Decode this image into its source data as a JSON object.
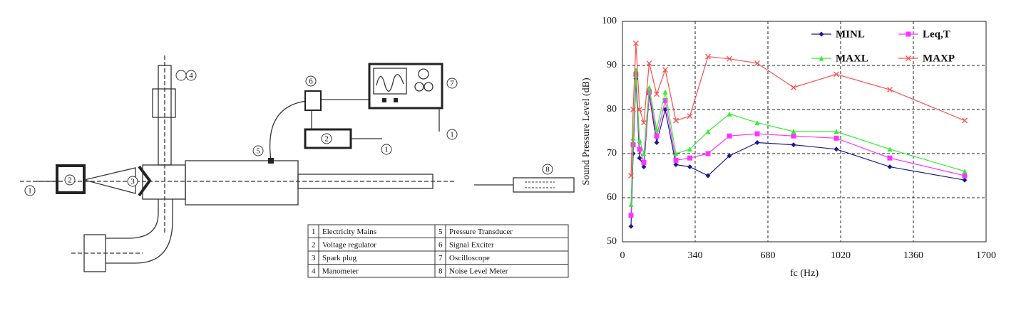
{
  "diagram": {
    "labels": [
      "1",
      "2",
      "3",
      "4",
      "5",
      "6",
      "7",
      "2",
      "1",
      "1",
      "8"
    ],
    "table": {
      "rows": [
        [
          "1",
          "Electricity Mains",
          "5",
          "Pressure Transducer"
        ],
        [
          "2",
          "Voltage regulator",
          "6",
          "Signal Exciter"
        ],
        [
          "3",
          "Spark plug",
          "7",
          "Oscilloscope"
        ],
        [
          "4",
          "Manometer",
          "8",
          "Noise Level Meter"
        ]
      ]
    }
  },
  "chart_data": {
    "type": "line",
    "x_label": "fc (Hz)",
    "y_label": "Sound Pressure Level (dB)",
    "x": [
      40,
      50,
      63,
      80,
      100,
      125,
      160,
      200,
      250,
      315,
      400,
      500,
      630,
      800,
      1000,
      1250,
      1600
    ],
    "series": [
      {
        "name": "MINL",
        "color": "#1a1a8c",
        "marker": "diamond",
        "values": [
          53.5,
          70,
          87,
          69,
          67,
          83.5,
          72.5,
          80,
          67.5,
          67,
          65,
          69.5,
          72.5,
          72,
          71,
          67,
          64
        ]
      },
      {
        "name": "Leq,T",
        "color": "#ff33ff",
        "marker": "square",
        "values": [
          56,
          72,
          88,
          71,
          68,
          84,
          74,
          82,
          68.5,
          69,
          70,
          74,
          74.5,
          74,
          73.5,
          69,
          65
        ]
      },
      {
        "name": "MAXL",
        "color": "#33ee33",
        "marker": "triangle",
        "values": [
          58.5,
          73.5,
          89,
          73,
          70,
          85,
          75.5,
          84,
          70,
          71,
          75,
          79,
          77,
          75,
          75,
          71,
          66
        ]
      },
      {
        "name": "MAXP",
        "color": "#ff4d4d",
        "marker": "cross",
        "values": [
          65,
          80,
          95,
          80,
          77,
          90.5,
          83.5,
          89,
          77.5,
          78.5,
          92,
          91.5,
          90.5,
          85,
          88,
          84.5,
          77.5
        ]
      }
    ],
    "xlim": [
      0,
      1700
    ],
    "xticks": [
      0,
      340,
      680,
      1020,
      1360,
      1700
    ],
    "ylim": [
      50,
      100
    ],
    "yticks": [
      50,
      60,
      70,
      80,
      90,
      100
    ],
    "grid": true,
    "legend": "upper right"
  }
}
